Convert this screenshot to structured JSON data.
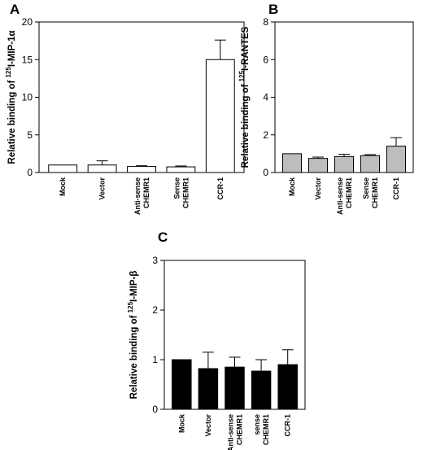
{
  "chart_data": [
    {
      "panel": "A",
      "type": "bar",
      "ylabel_prefix": "Relative binding of ",
      "ylabel_sup": "125",
      "ylabel_suffix": "I-MIP-1α",
      "ylim": [
        0,
        20
      ],
      "yticks": [
        "0",
        "5",
        "10",
        "15",
        "20"
      ],
      "fill": "#ffffff",
      "categories": [
        [
          "Mock"
        ],
        [
          "Vector"
        ],
        [
          "Anti-sense",
          "CHEMR1"
        ],
        [
          "Sense",
          "CHEMR1"
        ],
        [
          "CCR-1"
        ]
      ],
      "values": [
        1.0,
        1.0,
        0.8,
        0.75,
        15.0
      ],
      "errors": [
        0.0,
        0.55,
        0.1,
        0.12,
        2.6
      ]
    },
    {
      "panel": "B",
      "type": "bar",
      "ylabel_prefix": "Relative binding of ",
      "ylabel_sup": "125",
      "ylabel_suffix": "I-RANTES",
      "ylim": [
        0,
        8
      ],
      "yticks": [
        "0",
        "2",
        "4",
        "6",
        "8"
      ],
      "fill": "#bdbdbd",
      "categories": [
        [
          "Mock"
        ],
        [
          "Vector"
        ],
        [
          "Anti-sense",
          "CHEMR1"
        ],
        [
          "Sense",
          "CHEMR1"
        ],
        [
          "CCR-1"
        ]
      ],
      "values": [
        1.0,
        0.75,
        0.85,
        0.9,
        1.4
      ],
      "errors": [
        0.0,
        0.07,
        0.12,
        0.05,
        0.45
      ]
    },
    {
      "panel": "C",
      "type": "bar",
      "ylabel_prefix": "Relative binding of ",
      "ylabel_sup": "125",
      "ylabel_suffix": "I-MIP-β",
      "ylim": [
        0,
        3
      ],
      "yticks": [
        "0",
        "1",
        "2",
        "3"
      ],
      "fill": "#000000",
      "categories": [
        [
          "Mock"
        ],
        [
          "Vector"
        ],
        [
          "Anti-sense",
          "CHEMR1"
        ],
        [
          "sense",
          "CHEMR1"
        ],
        [
          "CCR-1"
        ]
      ],
      "values": [
        1.0,
        0.82,
        0.85,
        0.77,
        0.9
      ],
      "errors": [
        0.0,
        0.33,
        0.2,
        0.23,
        0.3
      ]
    }
  ]
}
